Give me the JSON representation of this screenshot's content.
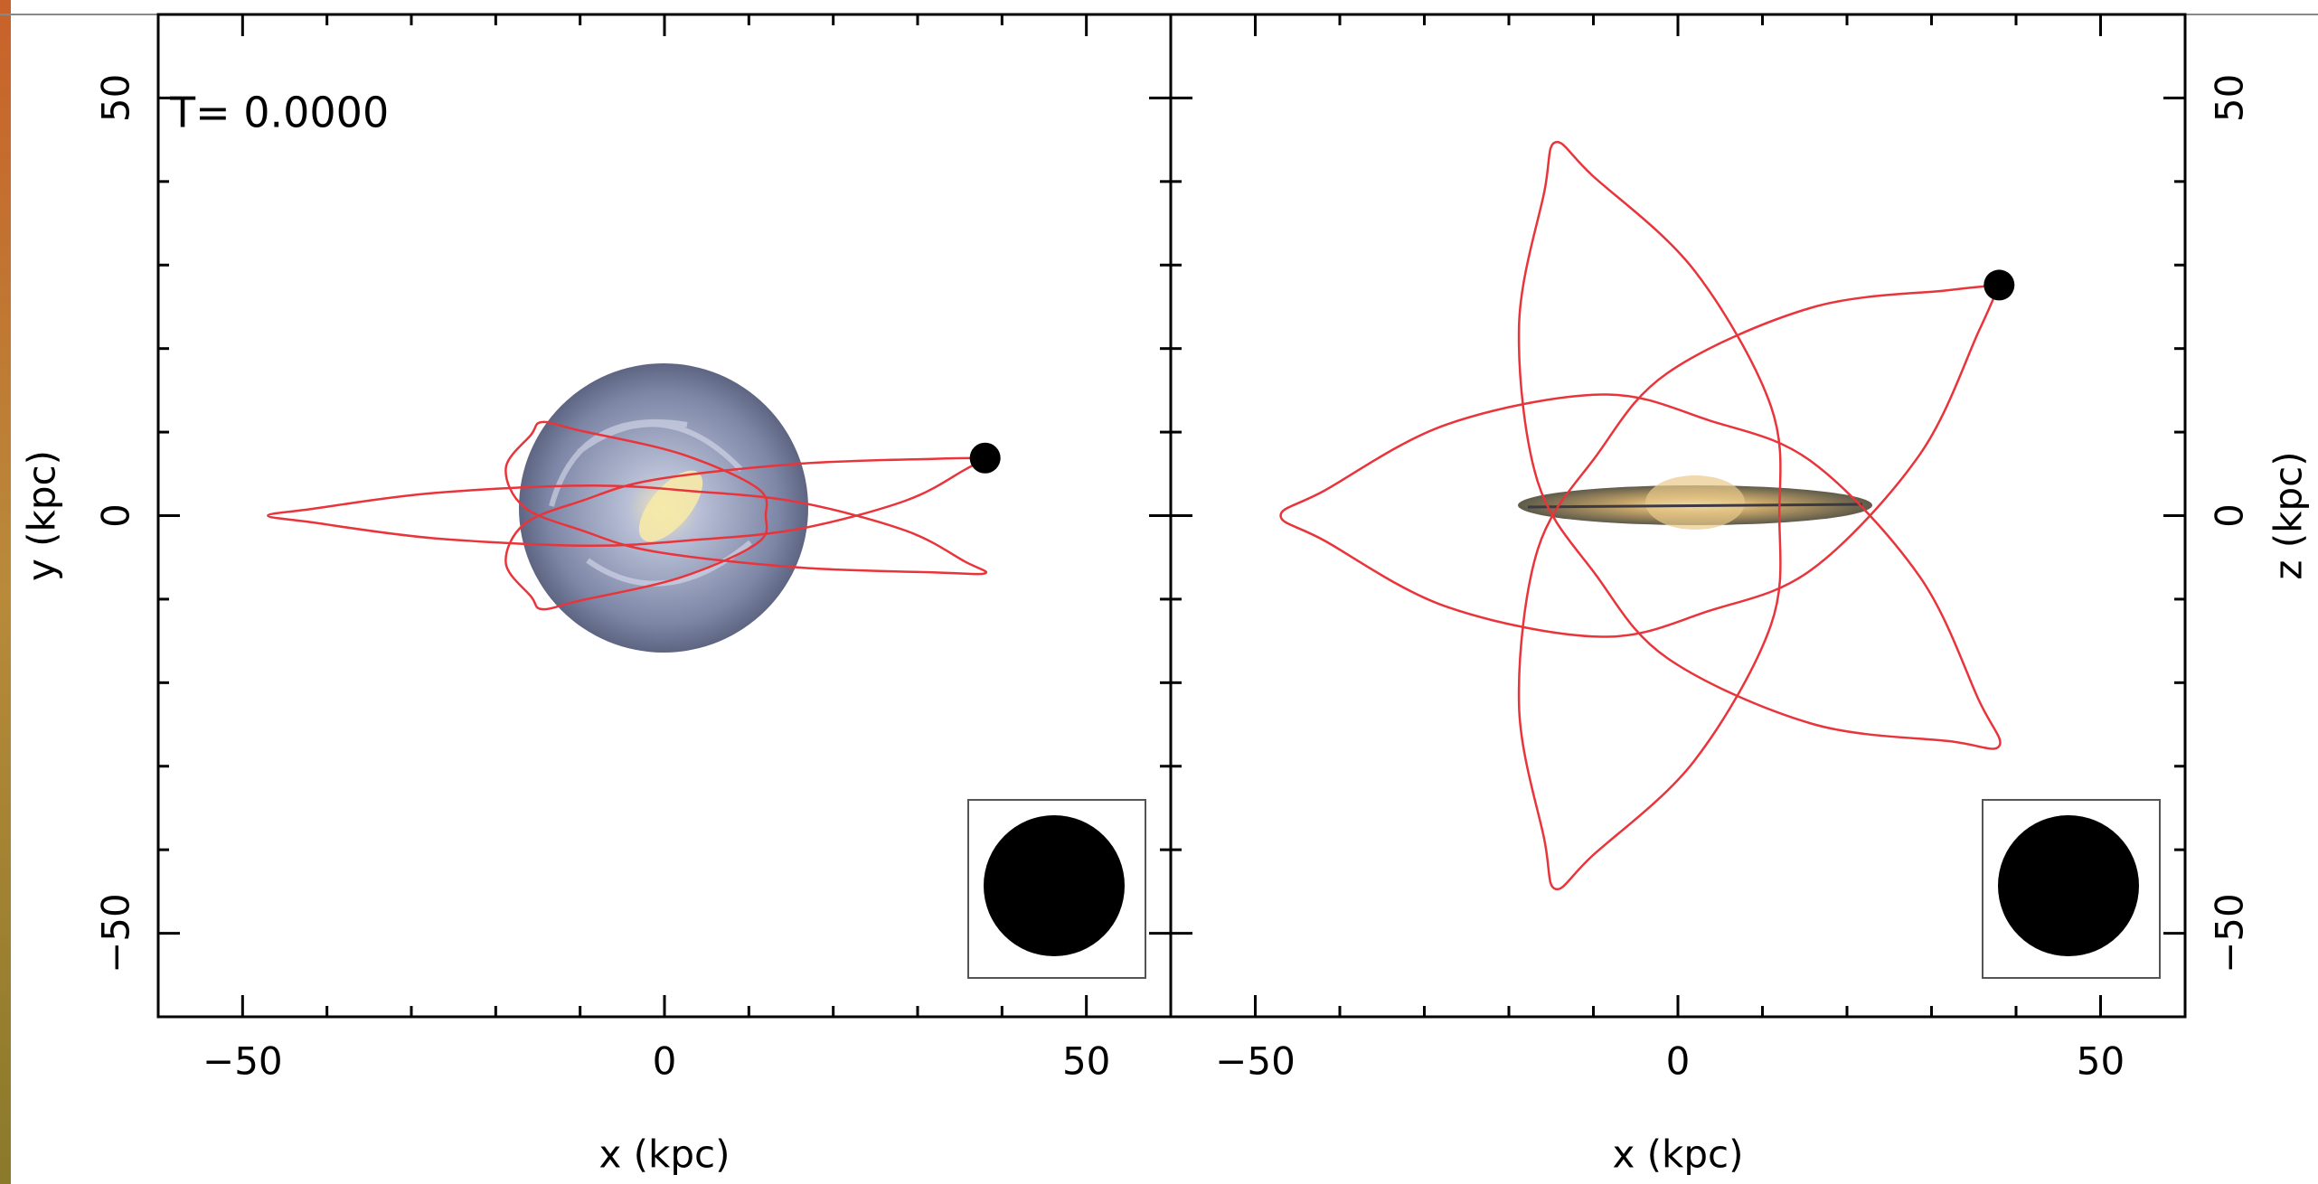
{
  "chart_data": [
    {
      "type": "line",
      "annotation": "T= 0.0000",
      "xlabel": "x (kpc)",
      "ylabel": "y (kpc)",
      "yaxis_side": "left",
      "xlim": [
        -60,
        60
      ],
      "ylim": [
        -60,
        60
      ],
      "xticks": [
        {
          "value": -50,
          "label": "−50"
        },
        0,
        50
      ],
      "yticks": [
        {
          "value": -50,
          "label": "−50"
        },
        0,
        50
      ],
      "minor_xticks": [
        -60,
        -40,
        -30,
        -20,
        -10,
        10,
        20,
        30,
        40,
        60
      ],
      "minor_yticks": [
        -60,
        -40,
        -30,
        -20,
        -10,
        10,
        20,
        30,
        40,
        60
      ],
      "series": [
        {
          "color": "#e8343a",
          "x": [
            38.0,
            32.1,
            15.8,
            -1.2,
            -9.7,
            -16.6,
            -18.8,
            -15.8,
            -14.5,
            -10.1,
            1.9,
            11.0,
            12,
            11.0,
            1.9,
            -10.1,
            -14.5,
            -15.8,
            -18.8,
            -16.6,
            -9.7,
            -1.2,
            15.8,
            32.1,
            38.0,
            35.6,
            28.6,
            15.9,
            3.7,
            -9.0,
            -27.4,
            -41.8,
            -47,
            -41.8,
            -27.4,
            -9.0,
            3.7,
            15.9,
            28.6,
            35.6,
            38.0
          ],
          "y": [
            6.9,
            6.8,
            6.2,
            4.3,
            1.8,
            -1.0,
            -5.7,
            -9.7,
            -11.2,
            -10.2,
            -7.4,
            -3.3,
            0,
            3.3,
            7.4,
            10.2,
            11.2,
            9.7,
            5.7,
            1.0,
            -1.8,
            -4.3,
            -6.2,
            -6.8,
            -6.9,
            -5.5,
            -1.8,
            1.6,
            2.9,
            3.6,
            2.7,
            0.8,
            0,
            -0.8,
            -2.7,
            -3.6,
            -2.9,
            -1.6,
            1.8,
            5.5,
            6.9
          ]
        }
      ],
      "point": {
        "x": 38.0,
        "y": 6.9,
        "color": "#000000"
      }
    },
    {
      "type": "line",
      "xlabel": "x (kpc)",
      "ylabel": "z (kpc)",
      "yaxis_side": "right",
      "xlim": [
        -60,
        60
      ],
      "ylim": [
        -60,
        60
      ],
      "xticks": [
        {
          "value": -50,
          "label": "−50"
        },
        0,
        50
      ],
      "yticks": [
        {
          "value": -50,
          "label": "−50"
        },
        0,
        50
      ],
      "minor_xticks": [
        -60,
        -40,
        -30,
        -20,
        -10,
        10,
        20,
        30,
        40,
        60
      ],
      "minor_yticks": [
        -60,
        -40,
        -30,
        -20,
        -10,
        10,
        20,
        30,
        40,
        60
      ],
      "series": [
        {
          "color": "#e8343a",
          "x": [
            38.0,
            32.1,
            15.8,
            -1.2,
            -9.7,
            -16.6,
            -18.8,
            -15.8,
            -14.5,
            -10.1,
            1.9,
            11.0,
            12,
            11.0,
            1.9,
            -10.1,
            -14.5,
            -15.8,
            -18.8,
            -16.6,
            -9.7,
            -1.2,
            15.8,
            32.1,
            38.0,
            35.6,
            28.6,
            15.9,
            3.7,
            -9.0,
            -27.4,
            -41.8,
            -47,
            -41.8,
            -27.4,
            -9.0,
            3.7,
            15.9,
            28.6,
            35.6,
            38.0
          ],
          "y": [
            27.6,
            27.0,
            24.9,
            17.1,
            7.1,
            -4.1,
            -22.7,
            -38.8,
            -44.7,
            -40.7,
            -29.4,
            -13.1,
            0,
            13.1,
            29.4,
            40.7,
            44.7,
            38.8,
            22.7,
            4.1,
            -7.1,
            -17.1,
            -24.9,
            -27.0,
            -27.6,
            -22.1,
            -7.3,
            6.4,
            11.4,
            14.5,
            10.9,
            3.0,
            0,
            -3.0,
            -10.9,
            -14.5,
            -11.4,
            -6.4,
            7.3,
            22.1,
            27.6
          ]
        }
      ],
      "point": {
        "x": 38.0,
        "y": 27.6,
        "color": "#000000"
      }
    }
  ]
}
